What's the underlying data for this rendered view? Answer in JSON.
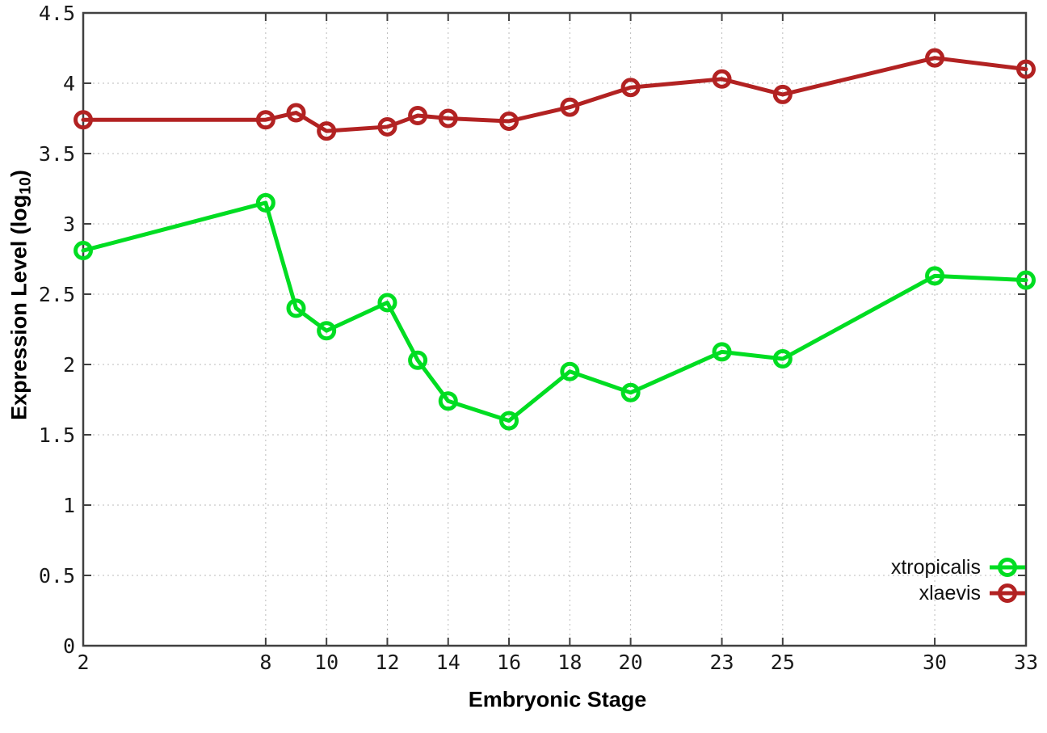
{
  "chart_data": {
    "type": "line",
    "title": "",
    "xlabel": "Embryonic Stage",
    "ylabel": "Expression Level (log10)",
    "ylabel_parts": {
      "pre": "Expression Level (log",
      "sub": "10",
      "post": ")"
    },
    "x": [
      2,
      8,
      9,
      10,
      12,
      13,
      14,
      16,
      18,
      20,
      23,
      25,
      30,
      33
    ],
    "series": [
      {
        "name": "xtropicalis",
        "color": "#00dd22",
        "values": [
          2.81,
          3.15,
          2.4,
          2.24,
          2.44,
          2.03,
          1.74,
          1.6,
          1.95,
          1.8,
          2.09,
          2.04,
          2.63,
          2.6
        ]
      },
      {
        "name": "xlaevis",
        "color": "#b22222",
        "values": [
          3.74,
          3.74,
          3.79,
          3.66,
          3.69,
          3.77,
          3.75,
          3.73,
          3.83,
          3.97,
          4.03,
          3.92,
          4.18,
          4.1
        ]
      }
    ],
    "xlim": [
      2,
      33
    ],
    "ylim": [
      0,
      4.5
    ],
    "xticks": [
      2,
      8,
      10,
      12,
      14,
      16,
      18,
      20,
      23,
      25,
      30,
      33
    ],
    "yticks": [
      0,
      0.5,
      1,
      1.5,
      2,
      2.5,
      3,
      3.5,
      4,
      4.5
    ],
    "grid": true,
    "grid_style": "dotted",
    "legend_position": "bottom-right",
    "marker": "open-circle",
    "colors": {
      "border": "#404040",
      "grid": "#bbbbbb",
      "tick_text": "#1a1a1a"
    }
  }
}
